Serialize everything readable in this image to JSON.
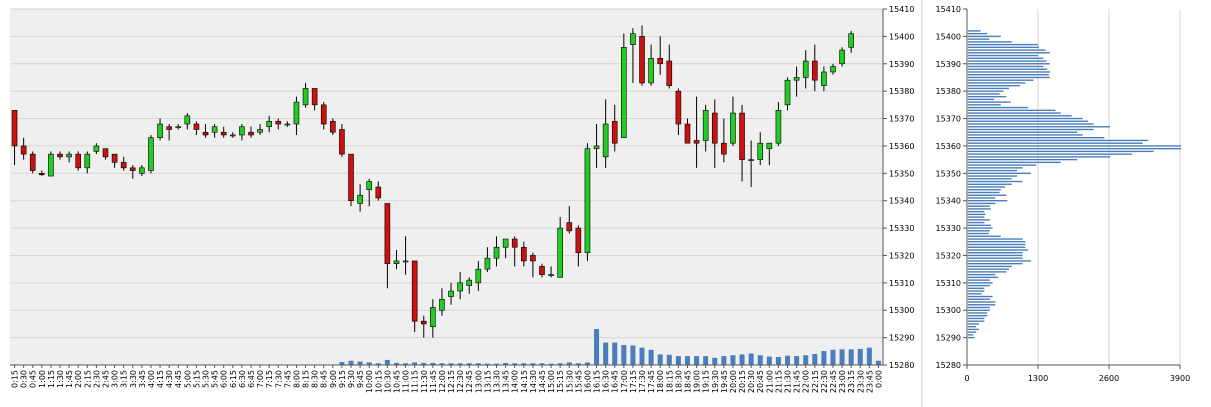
{
  "chart_data": [
    {
      "type": "candlestick",
      "x_tick_labels": [
        "0:15",
        "0:30",
        "0:45",
        "1:00",
        "1:15",
        "1:30",
        "1:45",
        "2:00",
        "2:15",
        "2:30",
        "2:45",
        "3:00",
        "3:15",
        "3:30",
        "3:45",
        "4:00",
        "4:15",
        "4:30",
        "4:45",
        "5:00",
        "5:15",
        "5:30",
        "5:45",
        "6:00",
        "6:15",
        "6:30",
        "6:45",
        "7:00",
        "7:15",
        "7:30",
        "7:45",
        "8:00",
        "8:15",
        "8:30",
        "8:45",
        "9:00",
        "9:15",
        "9:30",
        "9:45",
        "10:00",
        "10:15",
        "10:30",
        "10:45",
        "11:00",
        "11:15",
        "11:30",
        "11:45",
        "12:00",
        "12:15",
        "12:30",
        "12:45",
        "13:00",
        "13:15",
        "13:30",
        "13:45",
        "14:00",
        "14:15",
        "14:30",
        "14:45",
        "15:00",
        "15:15",
        "15:30",
        "15:45",
        "16:00",
        "16:15",
        "16:30",
        "16:45",
        "17:00",
        "17:15",
        "17:30",
        "17:45",
        "18:00",
        "18:15",
        "18:30",
        "18:45",
        "19:00",
        "19:15",
        "19:30",
        "19:45",
        "20:00",
        "20:15",
        "20:30",
        "20:45",
        "21:00",
        "21:15",
        "21:30",
        "21:45",
        "22:00",
        "22:15",
        "22:30",
        "22:45",
        "23:00",
        "23:15",
        "23:30",
        "23:45",
        "0:00"
      ],
      "y_tick_labels": [
        "15410",
        "15400",
        "15390",
        "15380",
        "15370",
        "15360",
        "15350",
        "15340",
        "15330",
        "15320",
        "15310",
        "15300",
        "15290",
        "15280"
      ],
      "ylim": [
        15280,
        15410
      ],
      "grid": true,
      "up_color": "#22cc22",
      "down_color": "#cc1111",
      "volume_color": "#4a7ebb",
      "candles": [
        {
          "o": 15373,
          "h": 15373,
          "l": 15353,
          "c": 15360
        },
        {
          "o": 15360,
          "h": 15363,
          "l": 15355,
          "c": 15357
        },
        {
          "o": 15357,
          "h": 15358,
          "l": 15350,
          "c": 15351
        },
        {
          "o": 15350,
          "h": 15351,
          "l": 15349,
          "c": 15349.5
        },
        {
          "o": 15349,
          "h": 15358,
          "l": 15349,
          "c": 15357
        },
        {
          "o": 15357,
          "h": 15358,
          "l": 15355,
          "c": 15356
        },
        {
          "o": 15356,
          "h": 15358,
          "l": 15354,
          "c": 15357
        },
        {
          "o": 15357,
          "h": 15358,
          "l": 15351,
          "c": 15352
        },
        {
          "o": 15352,
          "h": 15358,
          "l": 15350,
          "c": 15357
        },
        {
          "o": 15358,
          "h": 15361,
          "l": 15357,
          "c": 15360
        },
        {
          "o": 15359,
          "h": 15359,
          "l": 15355,
          "c": 15356
        },
        {
          "o": 15357,
          "h": 15357,
          "l": 15352,
          "c": 15354
        },
        {
          "o": 15354,
          "h": 15356,
          "l": 15351,
          "c": 15352
        },
        {
          "o": 15352,
          "h": 15353,
          "l": 15348,
          "c": 15351
        },
        {
          "o": 15350,
          "h": 15353,
          "l": 15349,
          "c": 15352
        },
        {
          "o": 15351,
          "h": 15364,
          "l": 15350,
          "c": 15363
        },
        {
          "o": 15363,
          "h": 15370,
          "l": 15362,
          "c": 15368
        },
        {
          "o": 15367,
          "h": 15368,
          "l": 15362,
          "c": 15366
        },
        {
          "o": 15367,
          "h": 15368,
          "l": 15366,
          "c": 15367
        },
        {
          "o": 15368,
          "h": 15372,
          "l": 15366,
          "c": 15371
        },
        {
          "o": 15368,
          "h": 15369,
          "l": 15364,
          "c": 15366
        },
        {
          "o": 15365,
          "h": 15368,
          "l": 15363,
          "c": 15364
        },
        {
          "o": 15365,
          "h": 15368,
          "l": 15363,
          "c": 15367
        },
        {
          "o": 15365,
          "h": 15367,
          "l": 15363,
          "c": 15364
        },
        {
          "o": 15364,
          "h": 15365,
          "l": 15363,
          "c": 15364
        },
        {
          "o": 15364,
          "h": 15368,
          "l": 15362,
          "c": 15367
        },
        {
          "o": 15365,
          "h": 15367,
          "l": 15363,
          "c": 15364
        },
        {
          "o": 15365,
          "h": 15368,
          "l": 15364,
          "c": 15366
        },
        {
          "o": 15367,
          "h": 15371,
          "l": 15365,
          "c": 15369
        },
        {
          "o": 15369,
          "h": 15370,
          "l": 15366,
          "c": 15368
        },
        {
          "o": 15368,
          "h": 15369,
          "l": 15367,
          "c": 15368
        },
        {
          "o": 15368,
          "h": 15378,
          "l": 15364,
          "c": 15376
        },
        {
          "o": 15375,
          "h": 15383,
          "l": 15374,
          "c": 15381
        },
        {
          "o": 15381,
          "h": 15381,
          "l": 15373,
          "c": 15375
        },
        {
          "o": 15375,
          "h": 15376,
          "l": 15366,
          "c": 15368
        },
        {
          "o": 15369,
          "h": 15370,
          "l": 15364,
          "c": 15365
        },
        {
          "o": 15366,
          "h": 15368,
          "l": 15356,
          "c": 15357
        },
        {
          "o": 15357,
          "h": 15357,
          "l": 15338,
          "c": 15340
        },
        {
          "o": 15339,
          "h": 15346,
          "l": 15336,
          "c": 15342
        },
        {
          "o": 15344,
          "h": 15348,
          "l": 15338,
          "c": 15347
        },
        {
          "o": 15345,
          "h": 15347,
          "l": 15340,
          "c": 15341
        },
        {
          "o": 15339,
          "h": 15339,
          "l": 15308,
          "c": 15317
        },
        {
          "o": 15317,
          "h": 15322,
          "l": 15315,
          "c": 15318
        },
        {
          "o": 15318,
          "h": 15327,
          "l": 15313,
          "c": 15318
        },
        {
          "o": 15318,
          "h": 15318,
          "l": 15292,
          "c": 15296
        },
        {
          "o": 15296,
          "h": 15298,
          "l": 15290,
          "c": 15295
        },
        {
          "o": 15294,
          "h": 15304,
          "l": 15290,
          "c": 15301
        },
        {
          "o": 15300,
          "h": 15308,
          "l": 15298,
          "c": 15304
        },
        {
          "o": 15305,
          "h": 15310,
          "l": 15302,
          "c": 15307
        },
        {
          "o": 15307,
          "h": 15314,
          "l": 15304,
          "c": 15310
        },
        {
          "o": 15309,
          "h": 15312,
          "l": 15306,
          "c": 15311
        },
        {
          "o": 15310,
          "h": 15318,
          "l": 15307,
          "c": 15315
        },
        {
          "o": 15315,
          "h": 15323,
          "l": 15314,
          "c": 15319
        },
        {
          "o": 15319,
          "h": 15327,
          "l": 15316,
          "c": 15323
        },
        {
          "o": 15323,
          "h": 15326,
          "l": 15319,
          "c": 15326
        },
        {
          "o": 15326,
          "h": 15327,
          "l": 15316,
          "c": 15323
        },
        {
          "o": 15323,
          "h": 15325,
          "l": 15316,
          "c": 15318
        },
        {
          "o": 15320,
          "h": 15321,
          "l": 15312,
          "c": 15318
        },
        {
          "o": 15316,
          "h": 15317,
          "l": 15312,
          "c": 15313
        },
        {
          "o": 15313,
          "h": 15316,
          "l": 15312,
          "c": 15313
        },
        {
          "o": 15312,
          "h": 15334,
          "l": 15312,
          "c": 15330
        },
        {
          "o": 15332,
          "h": 15338,
          "l": 15328,
          "c": 15329
        },
        {
          "o": 15330,
          "h": 15331,
          "l": 15316,
          "c": 15321
        },
        {
          "o": 15321,
          "h": 15361,
          "l": 15318,
          "c": 15359
        },
        {
          "o": 15359,
          "h": 15368,
          "l": 15352,
          "c": 15360
        },
        {
          "o": 15356,
          "h": 15377,
          "l": 15352,
          "c": 15368
        },
        {
          "o": 15369,
          "h": 15375,
          "l": 15358,
          "c": 15361
        },
        {
          "o": 15363,
          "h": 15401,
          "l": 15363,
          "c": 15396
        },
        {
          "o": 15397,
          "h": 15403,
          "l": 15383,
          "c": 15401
        },
        {
          "o": 15400,
          "h": 15404,
          "l": 15382,
          "c": 15383
        },
        {
          "o": 15383,
          "h": 15397,
          "l": 15382,
          "c": 15392
        },
        {
          "o": 15392,
          "h": 15400,
          "l": 15386,
          "c": 15390
        },
        {
          "o": 15391,
          "h": 15397,
          "l": 15381,
          "c": 15382
        },
        {
          "o": 15380,
          "h": 15381,
          "l": 15364,
          "c": 15368
        },
        {
          "o": 15368,
          "h": 15370,
          "l": 15361,
          "c": 15361
        },
        {
          "o": 15362,
          "h": 15378,
          "l": 15352,
          "c": 15361
        },
        {
          "o": 15362,
          "h": 15375,
          "l": 15358,
          "c": 15373
        },
        {
          "o": 15372,
          "h": 15377,
          "l": 15352,
          "c": 15361
        },
        {
          "o": 15361,
          "h": 15370,
          "l": 15354,
          "c": 15357
        },
        {
          "o": 15361,
          "h": 15378,
          "l": 15360,
          "c": 15372
        },
        {
          "o": 15372,
          "h": 15375,
          "l": 15347,
          "c": 15355
        },
        {
          "o": 15355,
          "h": 15362,
          "l": 15345,
          "c": 15355
        },
        {
          "o": 15355,
          "h": 15365,
          "l": 15353,
          "c": 15361
        },
        {
          "o": 15359,
          "h": 15361,
          "l": 15353,
          "c": 15361
        },
        {
          "o": 15361,
          "h": 15376,
          "l": 15360,
          "c": 15373
        },
        {
          "o": 15375,
          "h": 15385,
          "l": 15373,
          "c": 15384
        },
        {
          "o": 15384,
          "h": 15389,
          "l": 15378,
          "c": 15385
        },
        {
          "o": 15385,
          "h": 15395,
          "l": 15381,
          "c": 15391
        },
        {
          "o": 15391,
          "h": 15397,
          "l": 15380,
          "c": 15384
        },
        {
          "o": 15382,
          "h": 15389,
          "l": 15380,
          "c": 15387
        },
        {
          "o": 15387,
          "h": 15390,
          "l": 15386,
          "c": 15389
        },
        {
          "o": 15390,
          "h": 15396,
          "l": 15389,
          "c": 15395
        },
        {
          "o": 15396,
          "h": 15402,
          "l": 15394,
          "c": 15401
        }
      ],
      "volume": [
        0,
        0,
        0,
        0,
        0,
        0,
        0,
        0,
        0,
        0,
        0,
        0,
        0,
        0,
        0,
        0,
        0,
        0,
        0,
        0,
        0,
        0,
        0,
        0,
        0,
        0,
        0,
        0,
        0,
        0,
        0,
        0,
        0,
        0,
        0,
        0,
        0.7,
        1,
        0.8,
        0.6,
        0.4,
        1.2,
        0.5,
        0.4,
        0.6,
        0.5,
        0.5,
        0.4,
        0.4,
        0.4,
        0.4,
        0.4,
        0.3,
        0.3,
        0.5,
        0.4,
        0.4,
        0.4,
        0.4,
        0.3,
        0.4,
        0.6,
        0.4,
        0.6,
        8.5,
        5.3,
        5.3,
        4.7,
        4.6,
        4.1,
        3.6,
        2.5,
        2.4,
        2.1,
        2.1,
        2.1,
        2.1,
        1.7,
        2.1,
        2.3,
        2.5,
        2.7,
        2.3,
        2.0,
        1.9,
        2.2,
        2.1,
        2.3,
        2.6,
        3.3,
        3.6,
        3.7,
        3.7,
        3.8,
        4.1,
        1.0
      ]
    },
    {
      "type": "bar",
      "orientation": "horizontal",
      "x_tick_labels": [
        "0",
        "1300",
        "2600",
        "3900"
      ],
      "xlim": [
        0,
        3900
      ],
      "y_tick_labels": [
        "15410",
        "15400",
        "15390",
        "15380",
        "15370",
        "15360",
        "15350",
        "15340",
        "15330",
        "15320",
        "15310",
        "15300",
        "15290",
        "15280"
      ],
      "ylim": [
        15280,
        15410
      ],
      "bar_color": "#4a7ebb",
      "price_levels": [
        15402,
        15401,
        15400,
        15399,
        15398,
        15397,
        15396,
        15395,
        15394,
        15393,
        15392,
        15391,
        15390,
        15389,
        15388,
        15387,
        15386,
        15385,
        15384,
        15383,
        15382,
        15381,
        15380,
        15379,
        15378,
        15377,
        15376,
        15375,
        15374,
        15373,
        15372,
        15371,
        15370,
        15369,
        15368,
        15367,
        15366,
        15365,
        15364,
        15363,
        15362,
        15361,
        15360,
        15359,
        15358,
        15357,
        15356,
        15355,
        15354,
        15353,
        15352,
        15351,
        15350,
        15349,
        15348,
        15347,
        15346,
        15345,
        15344,
        15343,
        15342,
        15341,
        15340,
        15339,
        15338,
        15337,
        15336,
        15335,
        15334,
        15333,
        15332,
        15331,
        15330,
        15329,
        15328,
        15327,
        15326,
        15325,
        15324,
        15323,
        15322,
        15321,
        15320,
        15319,
        15318,
        15317,
        15316,
        15315,
        15314,
        15313,
        15312,
        15311,
        15310,
        15309,
        15308,
        15307,
        15306,
        15305,
        15304,
        15303,
        15302,
        15301,
        15300,
        15299,
        15298,
        15297,
        15296,
        15295,
        15294,
        15293,
        15292,
        15291,
        15290
      ],
      "values": [
        230,
        350,
        600,
        390,
        800,
        1280,
        1300,
        1420,
        1500,
        1280,
        1380,
        1440,
        1500,
        1380,
        1450,
        1500,
        1480,
        1500,
        1200,
        1050,
        950,
        750,
        650,
        580,
        700,
        480,
        780,
        600,
        1100,
        1600,
        1700,
        1900,
        2100,
        2200,
        2300,
        2600,
        2300,
        2000,
        2100,
        2500,
        3300,
        3200,
        3900,
        3900,
        3400,
        3000,
        2600,
        2000,
        1700,
        1250,
        1000,
        900,
        1150,
        900,
        800,
        1000,
        800,
        680,
        600,
        580,
        700,
        500,
        720,
        500,
        400,
        420,
        300,
        320,
        300,
        400,
        300,
        420,
        450,
        400,
        380,
        600,
        1000,
        1050,
        1050,
        1050,
        1100,
        1000,
        1000,
        1000,
        1150,
        1000,
        800,
        750,
        700,
        500,
        550,
        400,
        450,
        400,
        300,
        300,
        250,
        450,
        400,
        500,
        500,
        400,
        400,
        350,
        350,
        300,
        300,
        200,
        150,
        200,
        150,
        100,
        120
      ]
    }
  ]
}
